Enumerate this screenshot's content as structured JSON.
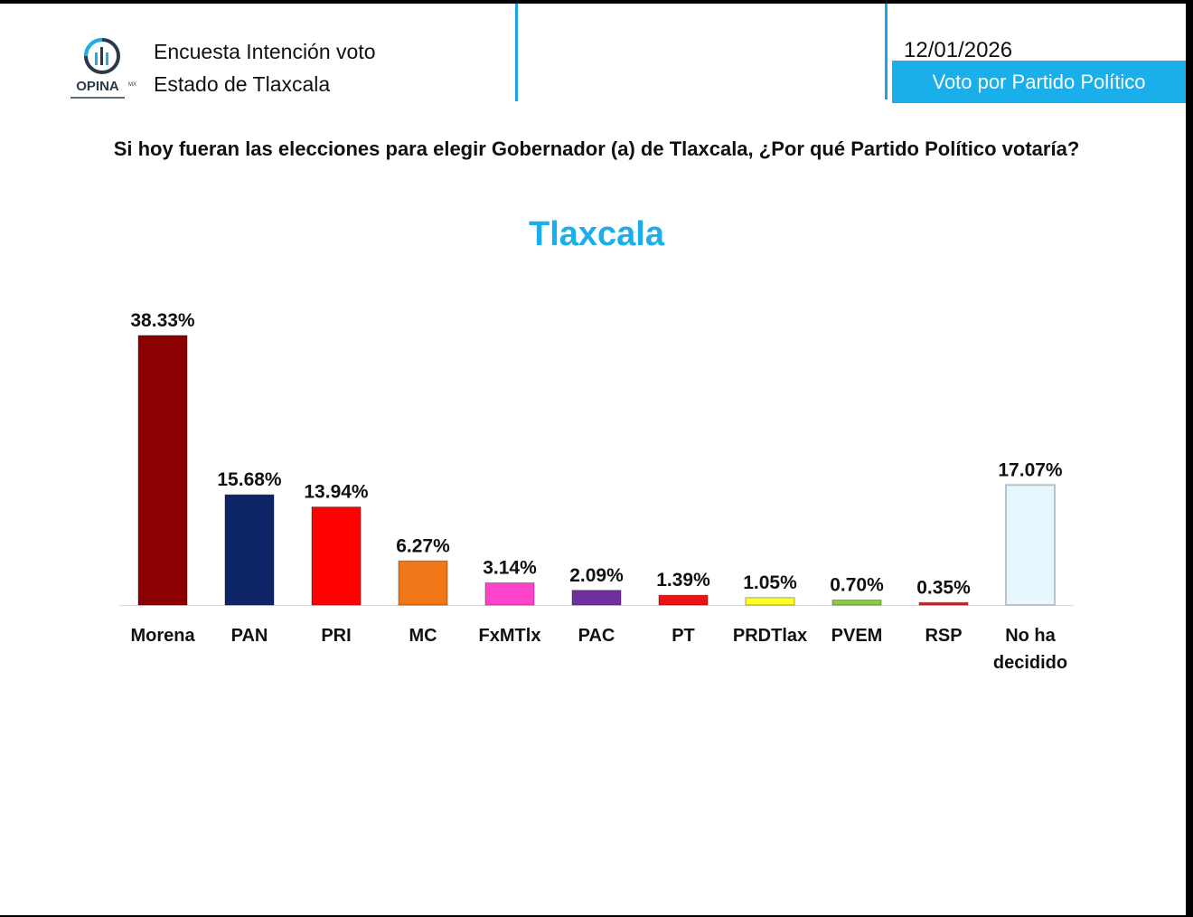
{
  "header": {
    "logo_text": "OPINA MX",
    "line1": "Encuesta Intención voto",
    "line2": "Estado de Tlaxcala",
    "date": "12/01/2026",
    "badge": "Voto por Partido Político",
    "accent_color": "#1aaeea"
  },
  "question": "Si hoy fueran las elecciones para elegir Gobernador (a) de Tlaxcala, ¿Por qué Partido Político votaría?",
  "chart_data": {
    "type": "bar",
    "title": "Tlaxcala",
    "categories": [
      "Morena",
      "PAN",
      "PRI",
      "MC",
      "FxMTlx",
      "PAC",
      "PT",
      "PRDTlax",
      "PVEM",
      "RSP",
      "No ha decidido"
    ],
    "values": [
      38.33,
      15.68,
      13.94,
      6.27,
      3.14,
      2.09,
      1.39,
      1.05,
      0.7,
      0.35,
      17.07
    ],
    "data_labels": [
      "38.33%",
      "15.68%",
      "13.94%",
      "6.27%",
      "3.14%",
      "2.09%",
      "1.39%",
      "1.05%",
      "0.70%",
      "0.35%",
      "17.07%"
    ],
    "colors": [
      "#8b0000",
      "#0d2466",
      "#ff0000",
      "#f07818",
      "#ff44cc",
      "#7030a0",
      "#ee1111",
      "#ffff22",
      "#88cc44",
      "#dd2222",
      "#e8f6fd"
    ],
    "xlabel": "",
    "ylabel": "",
    "ylim": [
      0,
      40
    ],
    "grid": false,
    "legend": "none"
  }
}
